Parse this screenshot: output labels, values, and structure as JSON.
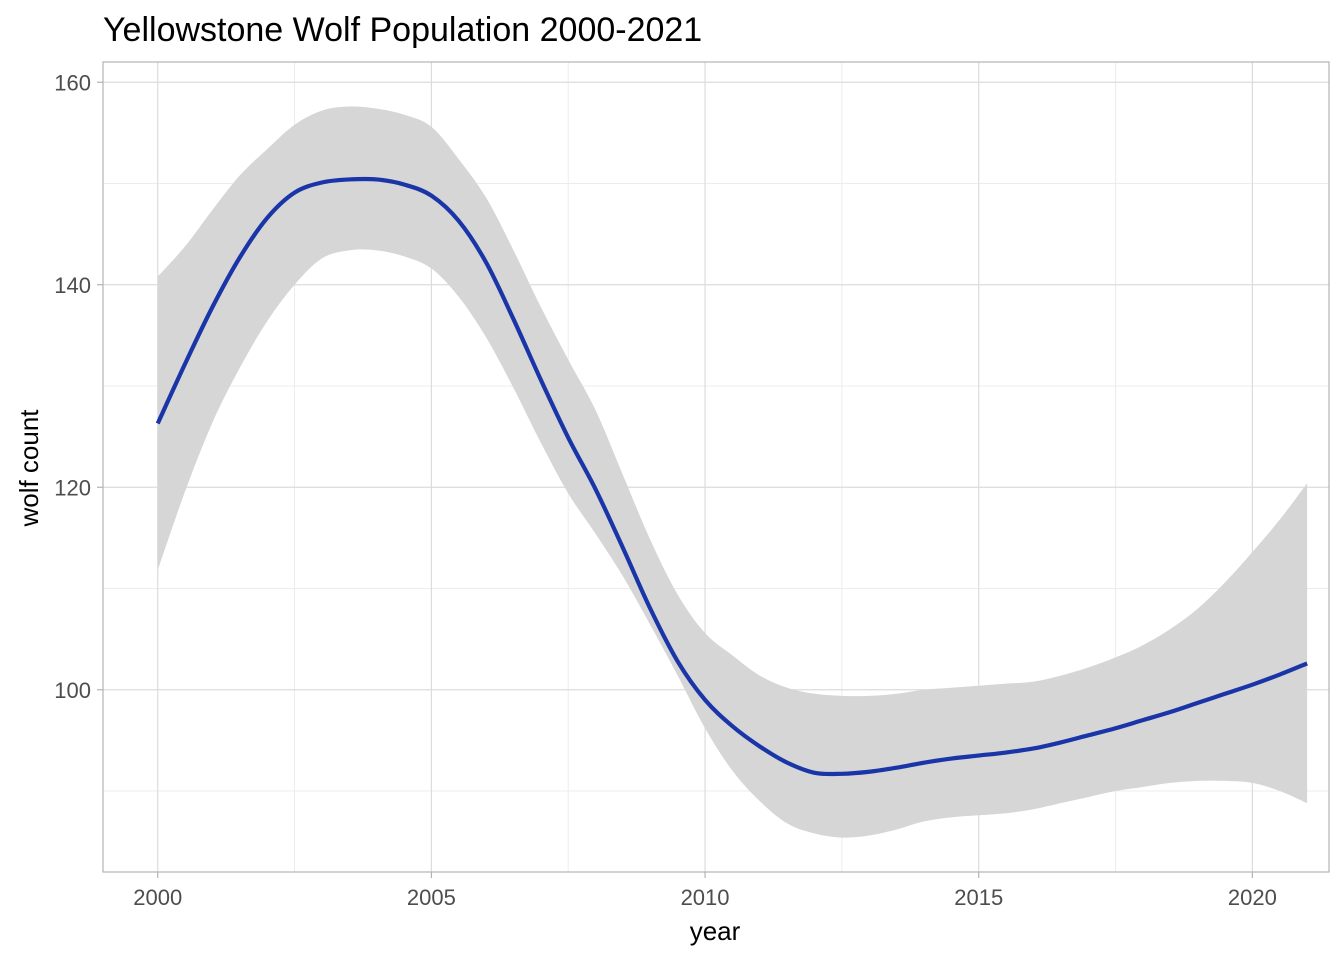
{
  "chart_data": {
    "type": "line",
    "title": "Yellowstone Wolf Population 2000-2021",
    "xlabel": "year",
    "ylabel": "wolf count",
    "xlim": [
      1999,
      2021.4
    ],
    "ylim": [
      82,
      162
    ],
    "x_ticks": [
      2000,
      2005,
      2010,
      2015,
      2020
    ],
    "y_ticks": [
      100,
      120,
      140,
      160
    ],
    "grid": true,
    "colors": {
      "line": "#1a35a8",
      "ribbon": "#d6d6d6"
    },
    "series": [
      {
        "x": [
          2000,
          2000.5,
          2001,
          2001.5,
          2002,
          2002.5,
          2003,
          2003.5,
          2004,
          2004.5,
          2005,
          2005.5,
          2006,
          2006.5,
          2007,
          2007.5,
          2008,
          2008.5,
          2009,
          2009.5,
          2010,
          2010.5,
          2011,
          2011.5,
          2012,
          2012.5,
          2013,
          2013.5,
          2014,
          2014.5,
          2015,
          2015.5,
          2016,
          2016.5,
          2017,
          2017.5,
          2018,
          2018.5,
          2019,
          2019.5,
          2020,
          2020.5,
          2021
        ],
        "y": [
          126.3,
          132.2,
          137.8,
          142.7,
          146.6,
          149.1,
          150.1,
          150.4,
          150.4,
          149.9,
          148.8,
          146.3,
          142.2,
          136.6,
          130.6,
          124.9,
          119.8,
          114.0,
          108.0,
          102.8,
          99.0,
          96.4,
          94.4,
          92.8,
          91.8,
          91.7,
          91.9,
          92.3,
          92.8,
          93.2,
          93.5,
          93.8,
          94.2,
          94.8,
          95.5,
          96.2,
          97.0,
          97.8,
          98.7,
          99.6,
          100.5,
          101.5,
          102.6
        ],
        "lower": [
          111.8,
          119.6,
          126.4,
          131.8,
          136.4,
          140.0,
          142.6,
          143.4,
          143.4,
          142.8,
          141.6,
          138.8,
          134.8,
          129.8,
          124.4,
          119.4,
          115.4,
          111.2,
          106.4,
          101.4,
          96.2,
          92.0,
          89.0,
          86.8,
          85.8,
          85.4,
          85.6,
          86.2,
          87.0,
          87.4,
          87.6,
          87.8,
          88.2,
          88.8,
          89.4,
          90.0,
          90.4,
          90.8,
          91.0,
          91.0,
          90.8,
          90.0,
          88.8
        ],
        "upper": [
          140.8,
          143.8,
          147.4,
          150.8,
          153.4,
          155.8,
          157.2,
          157.6,
          157.4,
          156.8,
          155.6,
          152.4,
          148.6,
          143.4,
          137.8,
          132.6,
          127.6,
          121.2,
          114.8,
          109.4,
          105.6,
          103.4,
          101.4,
          100.2,
          99.6,
          99.4,
          99.4,
          99.6,
          100.0,
          100.2,
          100.4,
          100.6,
          100.8,
          101.4,
          102.2,
          103.2,
          104.4,
          106.0,
          108.0,
          110.6,
          113.6,
          116.8,
          120.4
        ]
      }
    ]
  }
}
